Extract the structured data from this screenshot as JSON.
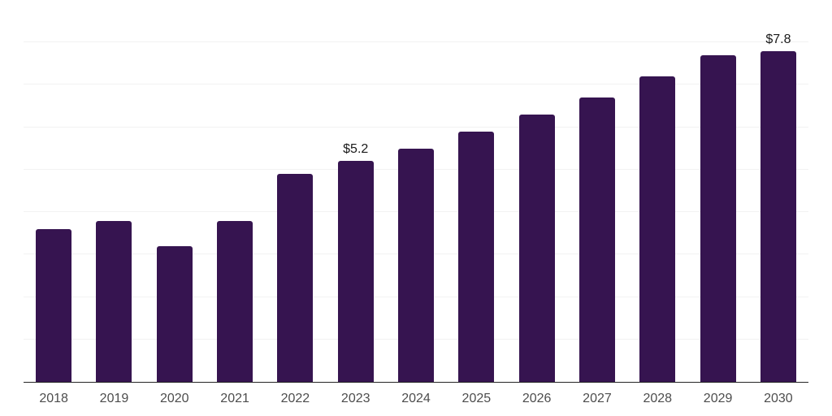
{
  "chart_data": {
    "type": "bar",
    "title": "",
    "xlabel": "",
    "ylabel": "",
    "categories": [
      "2018",
      "2019",
      "2020",
      "2021",
      "2022",
      "2023",
      "2024",
      "2025",
      "2026",
      "2027",
      "2028",
      "2029",
      "2030"
    ],
    "values": [
      3.6,
      3.8,
      3.2,
      3.8,
      4.9,
      5.2,
      5.5,
      5.9,
      6.3,
      6.7,
      7.2,
      7.7,
      7.8
    ],
    "value_labels": {
      "2023": "$5.2",
      "2030": "$7.8"
    },
    "ylim": [
      0,
      9
    ],
    "gridline_step": 1,
    "grid": true,
    "legend": false,
    "colors": {
      "bar": "#361450",
      "gridline": "#f2f2f2",
      "axis_line": "#262626",
      "tick_label": "#4d4d4d",
      "value_label": "#1a1a1a",
      "background": "#ffffff"
    }
  }
}
